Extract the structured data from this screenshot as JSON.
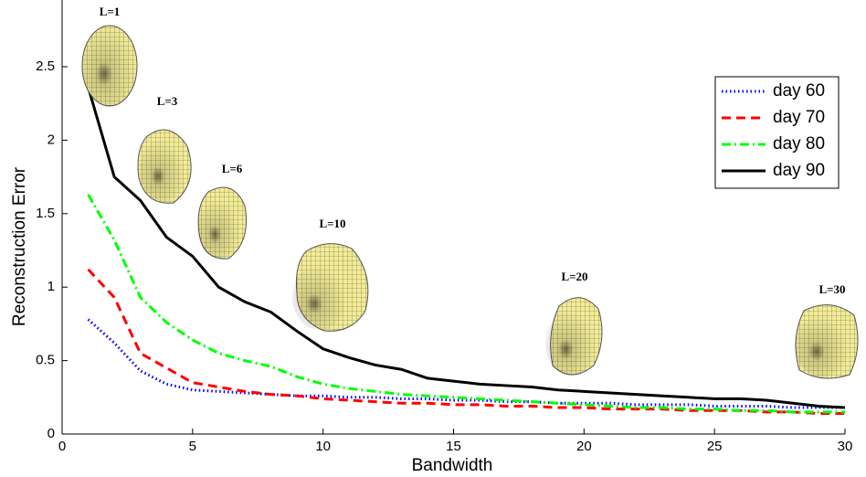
{
  "chart_data": {
    "type": "line",
    "x_label": "Bandwidth",
    "y_label": "Reconstruction Error",
    "x": [
      1,
      2,
      3,
      4,
      5,
      6,
      7,
      8,
      9,
      10,
      11,
      12,
      13,
      14,
      15,
      16,
      17,
      18,
      19,
      20,
      21,
      22,
      23,
      24,
      25,
      26,
      27,
      28,
      29,
      30
    ],
    "series": [
      {
        "name": "day 60",
        "color": "#0000ff",
        "linestyle": "dotted",
        "values": [
          0.78,
          0.62,
          0.43,
          0.34,
          0.3,
          0.29,
          0.28,
          0.27,
          0.26,
          0.26,
          0.25,
          0.25,
          0.24,
          0.24,
          0.23,
          0.23,
          0.22,
          0.22,
          0.21,
          0.21,
          0.21,
          0.2,
          0.2,
          0.2,
          0.19,
          0.19,
          0.19,
          0.18,
          0.18,
          0.18
        ]
      },
      {
        "name": "day 70",
        "color": "#ff0000",
        "linestyle": "dashed",
        "values": [
          1.12,
          0.93,
          0.55,
          0.45,
          0.35,
          0.32,
          0.29,
          0.27,
          0.26,
          0.24,
          0.23,
          0.22,
          0.21,
          0.21,
          0.2,
          0.2,
          0.19,
          0.19,
          0.18,
          0.18,
          0.17,
          0.17,
          0.17,
          0.16,
          0.16,
          0.16,
          0.15,
          0.15,
          0.14,
          0.14
        ]
      },
      {
        "name": "day 80",
        "color": "#00ff00",
        "linestyle": "dashdot",
        "values": [
          1.63,
          1.32,
          0.93,
          0.76,
          0.64,
          0.55,
          0.5,
          0.46,
          0.39,
          0.34,
          0.31,
          0.29,
          0.27,
          0.26,
          0.25,
          0.24,
          0.23,
          0.22,
          0.21,
          0.2,
          0.19,
          0.18,
          0.18,
          0.17,
          0.17,
          0.16,
          0.16,
          0.15,
          0.15,
          0.15
        ]
      },
      {
        "name": "day 90",
        "color": "#000000",
        "linestyle": "solid",
        "values": [
          2.36,
          1.75,
          1.59,
          1.34,
          1.21,
          1.0,
          0.9,
          0.83,
          0.7,
          0.58,
          0.52,
          0.47,
          0.44,
          0.38,
          0.36,
          0.34,
          0.33,
          0.32,
          0.3,
          0.29,
          0.28,
          0.27,
          0.26,
          0.25,
          0.24,
          0.24,
          0.23,
          0.21,
          0.19,
          0.18
        ]
      }
    ],
    "xlim": [
      0,
      30
    ],
    "xticks": [
      0,
      5,
      10,
      15,
      20,
      25,
      30
    ],
    "ylim": [
      0,
      2.5
    ],
    "yticks": [
      0,
      0.5,
      1,
      1.5,
      2,
      2.5
    ],
    "grid": false,
    "legend": "upper right",
    "annotations": [
      "L=1",
      "L=3",
      "L=6",
      "L=10",
      "L=20",
      "L=30"
    ]
  }
}
